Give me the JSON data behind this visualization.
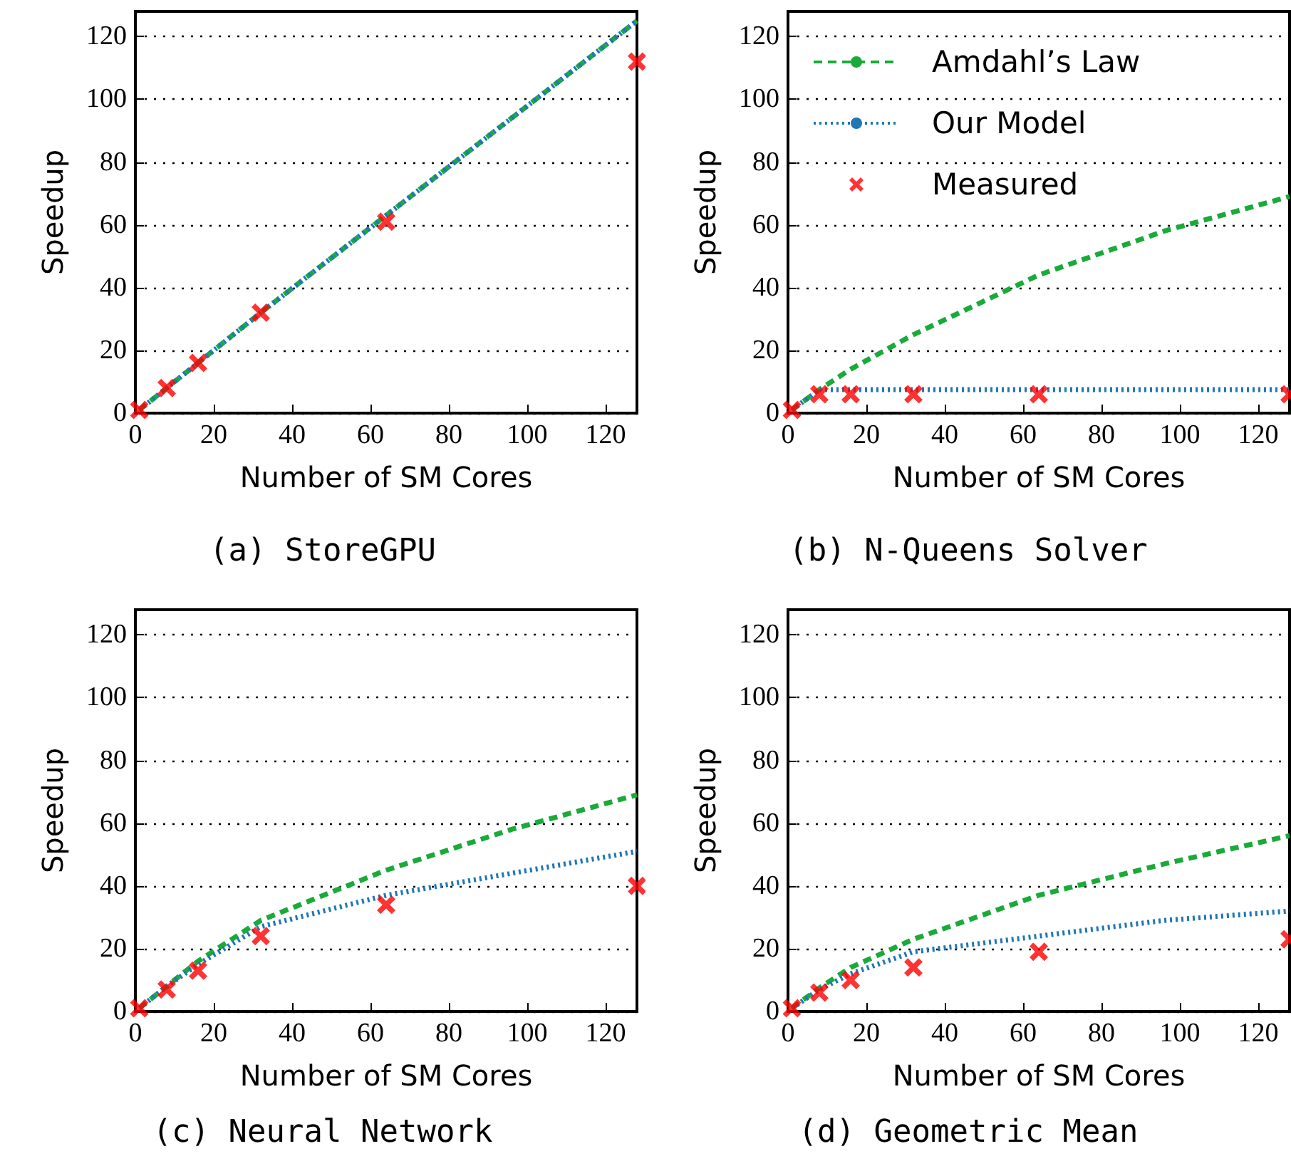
{
  "chart_data": [
    {
      "type": "line",
      "title": "(a) StoreGPU",
      "xlabel": "Number of SM Cores",
      "ylabel": "Speedup",
      "xlim": [
        0,
        128
      ],
      "ylim": [
        0,
        128
      ],
      "xticks": [
        0,
        20,
        40,
        60,
        80,
        100,
        120
      ],
      "yticks": [
        0,
        20,
        40,
        60,
        80,
        100,
        120
      ],
      "grid": "y",
      "legend": false,
      "series": [
        {
          "color": "#1aaa3a",
          "line_style": "dashed",
          "marker": "none",
          "x": [
            1,
            8,
            16,
            32,
            64,
            96,
            128
          ],
          "values": [
            1,
            8,
            16,
            32,
            63,
            94,
            125
          ]
        },
        {
          "color": "#1f77b4",
          "line_style": "dotted",
          "marker": "none",
          "x": [
            1,
            8,
            16,
            32,
            64,
            96,
            128
          ],
          "values": [
            1,
            8,
            16,
            32,
            63,
            94,
            125
          ]
        },
        {
          "type": "scatter",
          "color": "#ff0000",
          "marker": "cross",
          "x": [
            1,
            8,
            16,
            32,
            64,
            128
          ],
          "values": [
            1,
            8,
            16,
            32,
            61,
            112
          ]
        }
      ]
    },
    {
      "type": "line",
      "title": "(b) N-Queens Solver",
      "xlabel": "Number of SM Cores",
      "ylabel": "Speedup",
      "xlim": [
        0,
        128
      ],
      "ylim": [
        0,
        128
      ],
      "xticks": [
        0,
        20,
        40,
        60,
        80,
        100,
        120
      ],
      "yticks": [
        0,
        20,
        40,
        60,
        80,
        100,
        120
      ],
      "grid": "y",
      "legend": "top left",
      "series": [
        {
          "name": "Amdahl’s Law",
          "color": "#1aaa3a",
          "line_style": "dashed",
          "marker": "none",
          "x": [
            1,
            8,
            16,
            32,
            64,
            96,
            128
          ],
          "values": [
            1,
            7.5,
            14,
            25,
            44,
            58,
            69
          ]
        },
        {
          "name": "Our Model",
          "color": "#1f77b4",
          "line_style": "dotted",
          "marker": "none",
          "x": [
            1,
            8,
            16,
            32,
            64,
            96,
            128
          ],
          "values": [
            1,
            7.5,
            7.5,
            7.5,
            7.5,
            7.5,
            7.5
          ]
        },
        {
          "type": "scatter",
          "name": "Measured",
          "color": "#ff0000",
          "marker": "cross",
          "x": [
            1,
            8,
            16,
            32,
            64,
            128
          ],
          "values": [
            1,
            6,
            6,
            6,
            6,
            6
          ]
        }
      ]
    },
    {
      "type": "line",
      "title": "(c) Neural Network",
      "xlabel": "Number of SM Cores",
      "ylabel": "Speedup",
      "xlim": [
        0,
        128
      ],
      "ylim": [
        0,
        128
      ],
      "xticks": [
        0,
        20,
        40,
        60,
        80,
        100,
        120
      ],
      "yticks": [
        0,
        20,
        40,
        60,
        80,
        100,
        120
      ],
      "grid": "y",
      "legend": false,
      "series": [
        {
          "color": "#1aaa3a",
          "line_style": "dashed",
          "marker": "none",
          "x": [
            1,
            8,
            16,
            32,
            64,
            96,
            128
          ],
          "values": [
            1,
            8,
            16,
            29,
            45,
            58,
            69
          ]
        },
        {
          "color": "#1f77b4",
          "line_style": "dotted",
          "marker": "none",
          "x": [
            1,
            8,
            16,
            32,
            64,
            96,
            128
          ],
          "values": [
            1,
            8,
            15,
            27,
            37,
            44,
            51
          ]
        },
        {
          "type": "scatter",
          "color": "#ff0000",
          "marker": "cross",
          "x": [
            1,
            8,
            16,
            32,
            64,
            128
          ],
          "values": [
            1,
            7,
            13,
            24,
            34,
            40
          ]
        }
      ]
    },
    {
      "type": "line",
      "title": "(d) Geometric Mean",
      "xlabel": "Number of SM Cores",
      "ylabel": "Speedup",
      "xlim": [
        0,
        128
      ],
      "ylim": [
        0,
        128
      ],
      "xticks": [
        0,
        20,
        40,
        60,
        80,
        100,
        120
      ],
      "yticks": [
        0,
        20,
        40,
        60,
        80,
        100,
        120
      ],
      "grid": "y",
      "legend": false,
      "series": [
        {
          "color": "#1aaa3a",
          "line_style": "dashed",
          "marker": "none",
          "x": [
            1,
            8,
            16,
            32,
            64,
            96,
            128
          ],
          "values": [
            1,
            7.5,
            14,
            23,
            37,
            47,
            56
          ]
        },
        {
          "color": "#1f77b4",
          "line_style": "dotted",
          "marker": "none",
          "x": [
            1,
            8,
            16,
            32,
            64,
            96,
            128
          ],
          "values": [
            1,
            7,
            12,
            19,
            24,
            29,
            32
          ]
        },
        {
          "type": "scatter",
          "color": "#ff0000",
          "marker": "cross",
          "x": [
            1,
            8,
            16,
            32,
            64,
            128
          ],
          "values": [
            1,
            6,
            10,
            14,
            19,
            23
          ]
        }
      ]
    }
  ]
}
